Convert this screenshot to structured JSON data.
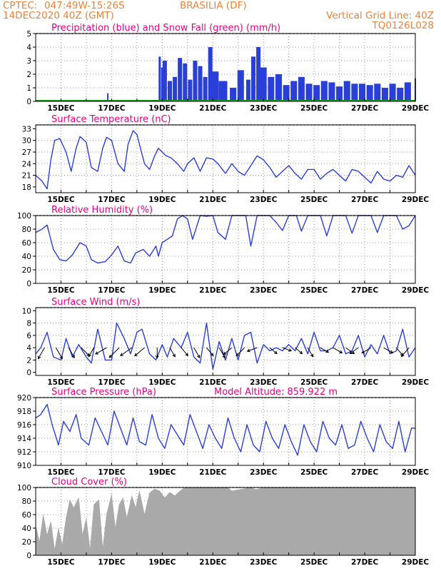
{
  "header": {
    "source": "CPTEC:",
    "coords": "047:49W-15:26S",
    "location": "BRASILIA (DF)",
    "run": "14DEC2020 40Z (GMT)",
    "grid_note": "Vertical Grid Line: 40Z",
    "model": "TQ0126L028"
  },
  "x_axis": {
    "date_ticks": [
      "15DEC",
      "17DEC",
      "19DEC",
      "21DEC",
      "23DEC",
      "25DEC",
      "27DEC",
      "29DEC"
    ],
    "start_day": 14,
    "end_day": 29
  },
  "colors": {
    "title": "#e6007e",
    "header": "#e8833a",
    "line": "#2a3fd8",
    "precip": "#2a3fd8",
    "snow": "#1aa01a",
    "cloud": "#a9a9a9",
    "wind_arrow": "#000000",
    "grid": "#9a9a9a"
  },
  "chart_data": [
    {
      "id": "precip",
      "type": "bar",
      "title": "Precipitation (blue) and Snow Fall (green) (mm/h)",
      "ylim": [
        0,
        5
      ],
      "yticks": [
        0,
        1,
        2,
        3,
        4,
        5
      ],
      "series": [
        {
          "name": "Precipitation",
          "x": [
            16.85,
            18.9,
            19.0,
            19.1,
            19.3,
            19.5,
            19.7,
            19.9,
            20.1,
            20.3,
            20.5,
            20.7,
            20.9,
            21.1,
            21.4,
            21.8,
            22.1,
            22.4,
            22.6,
            22.8,
            23.0,
            23.3,
            23.6,
            23.9,
            24.2,
            24.5,
            24.8,
            25.1,
            25.4,
            25.7,
            26.0,
            26.3,
            26.6,
            26.9,
            27.2,
            27.5,
            27.8,
            28.1,
            28.4,
            28.7,
            29.0
          ],
          "values": [
            0.6,
            3.3,
            2.5,
            3.0,
            1.5,
            1.8,
            3.2,
            2.8,
            1.6,
            3.0,
            2.6,
            1.8,
            4.0,
            2.2,
            1.5,
            1.0,
            2.3,
            1.6,
            3.3,
            4.0,
            2.5,
            1.8,
            2.0,
            1.2,
            1.5,
            1.8,
            1.3,
            1.2,
            1.5,
            1.4,
            1.1,
            1.5,
            1.3,
            1.3,
            1.2,
            1.3,
            1.0,
            1.3,
            1.0,
            1.4,
            1.7
          ]
        },
        {
          "name": "Snow Fall",
          "x": [
            14.0,
            29.0
          ],
          "values": [
            0,
            0
          ]
        }
      ]
    },
    {
      "id": "temp",
      "type": "line",
      "title": "Surface Temperature (nC)",
      "ylim": [
        16.5,
        34
      ],
      "yticks": [
        18,
        21,
        24,
        27,
        30,
        33
      ],
      "x": [
        14.0,
        14.25,
        14.45,
        14.6,
        14.75,
        14.95,
        15.2,
        15.4,
        15.6,
        15.75,
        16.0,
        16.2,
        16.45,
        16.65,
        16.8,
        17.0,
        17.25,
        17.5,
        17.65,
        17.85,
        18.0,
        18.3,
        18.5,
        18.7,
        18.85,
        19.0,
        19.15,
        19.35,
        19.6,
        19.85,
        20.0,
        20.25,
        20.5,
        20.75,
        21.0,
        21.2,
        21.5,
        21.75,
        22.0,
        22.25,
        22.5,
        22.75,
        23.0,
        23.25,
        23.5,
        23.75,
        24.0,
        24.25,
        24.5,
        24.75,
        25.0,
        25.25,
        25.5,
        25.75,
        26.0,
        26.25,
        26.5,
        26.75,
        27.0,
        27.25,
        27.5,
        27.75,
        28.0,
        28.25,
        28.5,
        28.75,
        29.0
      ],
      "values": [
        21,
        19.5,
        17.5,
        25,
        30,
        30.5,
        27,
        22,
        28,
        31,
        29.5,
        23,
        22,
        28,
        30.8,
        30,
        24,
        22,
        29,
        32.5,
        31.5,
        24,
        22.5,
        26,
        28,
        27,
        26,
        25.5,
        24,
        22,
        24,
        25.5,
        22,
        25.5,
        25.2,
        24,
        21.5,
        24,
        22,
        21,
        23.5,
        26,
        25,
        23,
        20.5,
        22,
        23.5,
        21.5,
        20,
        22.5,
        22.5,
        20,
        21.5,
        22.5,
        21,
        19.5,
        22.5,
        22,
        20.5,
        19,
        22,
        20,
        19.5,
        21,
        20.5,
        23.5,
        21
      ]
    },
    {
      "id": "rh",
      "type": "line",
      "title": "Relative Humidity (%)",
      "ylim": [
        0,
        100
      ],
      "yticks": [
        0,
        20,
        40,
        60,
        80,
        100
      ],
      "x": [
        14.0,
        14.25,
        14.45,
        14.7,
        14.95,
        15.2,
        15.45,
        15.75,
        16.0,
        16.2,
        16.45,
        16.75,
        17.0,
        17.25,
        17.5,
        17.75,
        17.95,
        18.25,
        18.5,
        18.75,
        18.85,
        19.0,
        19.2,
        19.4,
        19.6,
        19.8,
        20.0,
        20.2,
        20.5,
        20.75,
        21.0,
        21.2,
        21.5,
        21.75,
        22.0,
        22.3,
        22.5,
        22.75,
        23.0,
        23.25,
        23.5,
        23.75,
        24.0,
        24.3,
        24.5,
        24.75,
        25.0,
        25.25,
        25.5,
        25.75,
        26.0,
        26.25,
        26.5,
        26.75,
        27.0,
        27.25,
        27.5,
        27.75,
        28.0,
        28.25,
        28.5,
        28.75,
        29.0
      ],
      "values": [
        75,
        80,
        86,
        50,
        35,
        33,
        42,
        60,
        55,
        35,
        30,
        32,
        42,
        55,
        33,
        30,
        45,
        50,
        40,
        55,
        40,
        60,
        65,
        70,
        95,
        100,
        95,
        65,
        100,
        99,
        100,
        75,
        65,
        100,
        100,
        100,
        55,
        100,
        100,
        100,
        90,
        78,
        100,
        100,
        77,
        100,
        100,
        100,
        70,
        100,
        100,
        100,
        74,
        100,
        100,
        100,
        75,
        100,
        100,
        100,
        80,
        85,
        100
      ]
    },
    {
      "id": "wind",
      "type": "line",
      "title": "Surface Wind (m/s)",
      "ylim": [
        -0.5,
        10.5
      ],
      "yticks": [
        0,
        2,
        4,
        6,
        8,
        10
      ],
      "x": [
        14.0,
        14.2,
        14.45,
        14.7,
        15.0,
        15.2,
        15.45,
        15.7,
        16.0,
        16.2,
        16.45,
        16.75,
        17.0,
        17.2,
        17.5,
        17.75,
        18.0,
        18.2,
        18.5,
        18.75,
        19.0,
        19.2,
        19.45,
        19.75,
        20.0,
        20.25,
        20.5,
        20.75,
        21.0,
        21.25,
        21.5,
        21.75,
        22.0,
        22.25,
        22.5,
        22.75,
        23.0,
        23.25,
        23.5,
        23.75,
        24.0,
        24.25,
        24.5,
        24.75,
        25.0,
        25.25,
        25.5,
        25.75,
        26.0,
        26.25,
        26.5,
        26.75,
        27.0,
        27.25,
        27.5,
        27.75,
        28.0,
        28.25,
        28.5,
        28.75,
        29.0
      ],
      "values": [
        3,
        4,
        6.5,
        2.5,
        2,
        5.5,
        2.5,
        4.5,
        2.5,
        1.5,
        7,
        2,
        2,
        8,
        5.5,
        3,
        6.5,
        7,
        3,
        2,
        4.5,
        2.5,
        5.5,
        4,
        6.5,
        2.5,
        1.5,
        8,
        0.5,
        5,
        2,
        5.5,
        2,
        6,
        6.5,
        1.5,
        4.5,
        3.5,
        4,
        3.5,
        4.5,
        3.5,
        5.5,
        3,
        6.5,
        3.5,
        3.5,
        4,
        6,
        3,
        3.5,
        6,
        2.5,
        4.5,
        3,
        6,
        3,
        3.5,
        7,
        2.5,
        4
      ]
    },
    {
      "id": "pres",
      "type": "line",
      "title": "Surface Pressure (hPa)",
      "annotation": "Model Altitude: 859.922 m",
      "ylim": [
        910,
        920
      ],
      "yticks": [
        910,
        912,
        914,
        916,
        918,
        920
      ],
      "x": [
        14.0,
        14.2,
        14.45,
        14.65,
        14.9,
        15.1,
        15.35,
        15.6,
        15.8,
        16.1,
        16.35,
        16.6,
        16.85,
        17.1,
        17.35,
        17.6,
        17.85,
        18.1,
        18.35,
        18.6,
        18.85,
        19.1,
        19.35,
        19.6,
        19.85,
        20.1,
        20.35,
        20.6,
        20.85,
        21.1,
        21.35,
        21.6,
        21.85,
        22.1,
        22.35,
        22.6,
        22.85,
        23.1,
        23.35,
        23.6,
        23.85,
        24.1,
        24.35,
        24.6,
        24.85,
        25.1,
        25.35,
        25.6,
        25.85,
        26.1,
        26.35,
        26.6,
        26.85,
        27.1,
        27.35,
        27.6,
        27.85,
        28.1,
        28.35,
        28.6,
        28.85,
        29.0
      ],
      "values": [
        917,
        917.5,
        919,
        916,
        913,
        916.5,
        915,
        917.5,
        914,
        913,
        917,
        915,
        913,
        918,
        915.5,
        913,
        917,
        913.5,
        913,
        917.5,
        914,
        912.5,
        916,
        914.5,
        913,
        917.5,
        915,
        912.5,
        916,
        914,
        912.5,
        917,
        914,
        912,
        916,
        913,
        912,
        916.5,
        914,
        912.5,
        916,
        913.5,
        911.5,
        916,
        913.5,
        912,
        916.5,
        914,
        913,
        916,
        912.5,
        913,
        916.5,
        914,
        912,
        916,
        913.5,
        912.5,
        916.5,
        912,
        915.5,
        915.5
      ]
    },
    {
      "id": "cloud",
      "type": "area",
      "title": "Cloud Cover (%)",
      "ylim": [
        0,
        100
      ],
      "yticks": [
        0,
        20,
        40,
        60,
        80,
        100
      ],
      "x": [
        14.0,
        14.15,
        14.3,
        14.45,
        14.6,
        14.75,
        14.9,
        15.05,
        15.2,
        15.35,
        15.5,
        15.7,
        15.85,
        16.0,
        16.15,
        16.3,
        16.5,
        16.65,
        16.8,
        17.0,
        17.15,
        17.3,
        17.45,
        17.6,
        17.8,
        17.95,
        18.1,
        18.3,
        18.5,
        18.7,
        18.9,
        19.1,
        19.3,
        19.5,
        19.7,
        19.85,
        20.0,
        21.6,
        21.75,
        22.5,
        22.7,
        23.0,
        29.0
      ],
      "values": [
        45,
        20,
        60,
        30,
        50,
        8,
        40,
        15,
        55,
        82,
        70,
        85,
        30,
        55,
        8,
        75,
        82,
        10,
        60,
        90,
        40,
        75,
        85,
        55,
        88,
        70,
        95,
        60,
        92,
        98,
        95,
        85,
        93,
        88,
        95,
        99,
        100,
        100,
        95,
        100,
        97,
        100,
        100
      ]
    }
  ],
  "wind_arrows": [
    {
      "day": 14.35,
      "speed": 4.0,
      "dir_deg": 240
    },
    {
      "day": 14.8,
      "speed": 4.0,
      "dir_deg": 300
    },
    {
      "day": 15.3,
      "speed": 3.5,
      "dir_deg": 300
    },
    {
      "day": 15.8,
      "speed": 3.5,
      "dir_deg": 315
    },
    {
      "day": 16.3,
      "speed": 3.0,
      "dir_deg": 240
    },
    {
      "day": 16.8,
      "speed": 4.0,
      "dir_deg": 210
    },
    {
      "day": 17.3,
      "speed": 4.5,
      "dir_deg": 225
    },
    {
      "day": 17.8,
      "speed": 4.5,
      "dir_deg": 215
    },
    {
      "day": 18.3,
      "speed": 4.0,
      "dir_deg": 220
    },
    {
      "day": 18.8,
      "speed": 3.0,
      "dir_deg": 270
    },
    {
      "day": 19.3,
      "speed": 3.0,
      "dir_deg": 300
    },
    {
      "day": 19.75,
      "speed": 3.0,
      "dir_deg": 310
    },
    {
      "day": 20.25,
      "speed": 3.5,
      "dir_deg": 300
    },
    {
      "day": 20.75,
      "speed": 3.0,
      "dir_deg": 310
    },
    {
      "day": 21.25,
      "speed": 3.5,
      "dir_deg": 300
    },
    {
      "day": 21.75,
      "speed": 3.0,
      "dir_deg": 220
    },
    {
      "day": 22.25,
      "speed": 3.5,
      "dir_deg": 225
    },
    {
      "day": 22.75,
      "speed": 3.0,
      "dir_deg": 200
    },
    {
      "day": 23.25,
      "speed": 2.5,
      "dir_deg": 320
    },
    {
      "day": 23.75,
      "speed": 2.5,
      "dir_deg": 340
    },
    {
      "day": 24.25,
      "speed": 2.5,
      "dir_deg": 320
    },
    {
      "day": 24.75,
      "speed": 3.0,
      "dir_deg": 300
    },
    {
      "day": 25.25,
      "speed": 2.5,
      "dir_deg": 330
    },
    {
      "day": 25.75,
      "speed": 3.0,
      "dir_deg": 330
    },
    {
      "day": 26.25,
      "speed": 3.0,
      "dir_deg": 325
    },
    {
      "day": 26.75,
      "speed": 3.0,
      "dir_deg": 215
    },
    {
      "day": 27.25,
      "speed": 3.0,
      "dir_deg": 210
    },
    {
      "day": 27.75,
      "speed": 3.0,
      "dir_deg": 330
    },
    {
      "day": 28.25,
      "speed": 3.0,
      "dir_deg": 310
    },
    {
      "day": 28.75,
      "speed": 3.5,
      "dir_deg": 230
    }
  ]
}
